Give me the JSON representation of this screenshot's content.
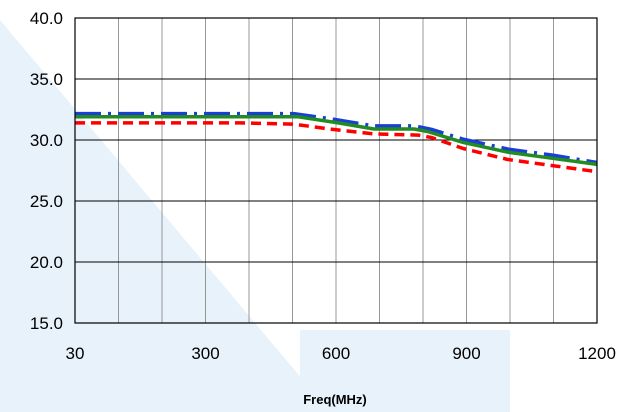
{
  "chart_data": {
    "type": "line",
    "title": "",
    "xlabel": "Freq(MHz)",
    "ylabel": "",
    "xlim": [
      30,
      1200
    ],
    "ylim": [
      15,
      40
    ],
    "x_ticks": [
      30,
      300,
      600,
      900,
      1200
    ],
    "x_tick_labels": [
      "30",
      "300",
      "600",
      "900",
      "1200"
    ],
    "x_minor_gridlines": 12,
    "y_ticks": [
      15,
      20,
      25,
      30,
      35,
      40
    ],
    "y_tick_labels": [
      "15.0",
      "20.0",
      "25.0",
      "30.0",
      "35.0",
      "40.0"
    ],
    "grid": true,
    "legend": "none",
    "series": [
      {
        "color": "#1a3fd6",
        "style": "dash-dot",
        "points": [
          [
            30,
            32.1
          ],
          [
            120,
            32.1
          ],
          [
            240,
            32.1
          ],
          [
            390,
            32.1
          ],
          [
            520,
            32.1
          ],
          [
            600,
            31.7
          ],
          [
            700,
            31.1
          ],
          [
            790,
            31.1
          ],
          [
            830,
            30.8
          ],
          [
            900,
            30.0
          ],
          [
            1000,
            29.2
          ],
          [
            1100,
            28.7
          ],
          [
            1200,
            28.1
          ]
        ]
      },
      {
        "color": "#228b22",
        "style": "solid",
        "points": [
          [
            30,
            31.9
          ],
          [
            200,
            31.9
          ],
          [
            400,
            31.9
          ],
          [
            530,
            31.9
          ],
          [
            620,
            31.4
          ],
          [
            700,
            30.9
          ],
          [
            790,
            30.9
          ],
          [
            820,
            30.7
          ],
          [
            900,
            29.8
          ],
          [
            1000,
            29.0
          ],
          [
            1100,
            28.5
          ],
          [
            1200,
            28.0
          ]
        ]
      },
      {
        "color": "#ff0000",
        "style": "dashed",
        "points": [
          [
            30,
            31.4
          ],
          [
            200,
            31.4
          ],
          [
            400,
            31.4
          ],
          [
            520,
            31.3
          ],
          [
            600,
            30.9
          ],
          [
            700,
            30.5
          ],
          [
            800,
            30.4
          ],
          [
            830,
            30.2
          ],
          [
            900,
            29.3
          ],
          [
            1000,
            28.4
          ],
          [
            1100,
            27.9
          ],
          [
            1200,
            27.4
          ]
        ]
      }
    ]
  },
  "colors": {
    "grid": "#7f7f7f",
    "frame": "#000000",
    "watermark": "#e8f2fb"
  }
}
